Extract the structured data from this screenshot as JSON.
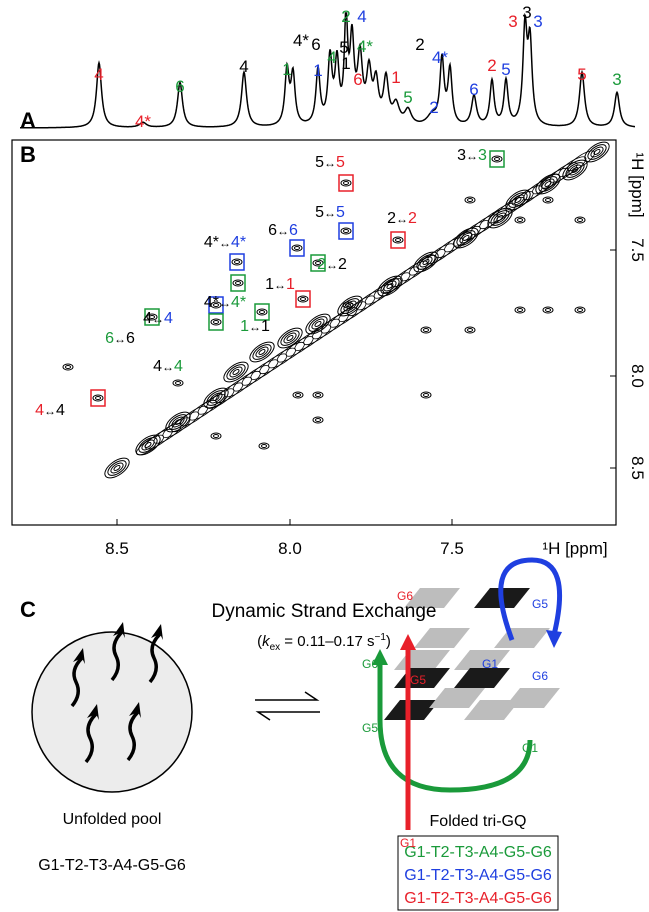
{
  "panel_a": {
    "label": "A",
    "peaks": [
      {
        "text": "4",
        "color": "red"
      },
      {
        "text": "4*",
        "color": "red"
      },
      {
        "text": "6",
        "color": "green"
      },
      {
        "text": "4",
        "color": "black"
      },
      {
        "text": "1",
        "color": "green"
      },
      {
        "text": "4*",
        "color": "black"
      },
      {
        "text": "6",
        "color": "black"
      },
      {
        "text": "1",
        "color": "blue"
      },
      {
        "text": "4",
        "color": "green"
      },
      {
        "text": "1",
        "color": "black"
      },
      {
        "text": "2",
        "color": "green"
      },
      {
        "text": "4",
        "color": "blue"
      },
      {
        "text": "5",
        "color": "black"
      },
      {
        "text": "4*",
        "color": "green"
      },
      {
        "text": "6",
        "color": "red"
      },
      {
        "text": "1",
        "color": "red"
      },
      {
        "text": "5",
        "color": "green"
      },
      {
        "text": "2",
        "color": "black"
      },
      {
        "text": "4*",
        "color": "blue"
      },
      {
        "text": "2",
        "color": "blue"
      },
      {
        "text": "6",
        "color": "blue"
      },
      {
        "text": "2",
        "color": "red"
      },
      {
        "text": "5",
        "color": "blue"
      },
      {
        "text": "3",
        "color": "red"
      },
      {
        "text": "3",
        "color": "black"
      },
      {
        "text": "3",
        "color": "blue"
      },
      {
        "text": "5",
        "color": "red"
      },
      {
        "text": "3",
        "color": "green"
      }
    ]
  },
  "panel_b": {
    "label": "B",
    "x_axis_label": "¹H [ppm]",
    "y_axis_label": "¹H [ppm]",
    "x_tick_labels": [
      "8.5",
      "8.0",
      "7.5"
    ],
    "y_tick_labels": [
      "7.5",
      "8.0",
      "8.5"
    ],
    "arrow": "↔",
    "cross_peaks": [
      {
        "from": "5",
        "from_color": "black",
        "to": "5",
        "to_color": "red"
      },
      {
        "from": "3",
        "from_color": "black",
        "to": "3",
        "to_color": "green"
      },
      {
        "from": "5",
        "from_color": "black",
        "to": "5",
        "to_color": "blue"
      },
      {
        "from": "2",
        "from_color": "black",
        "to": "2",
        "to_color": "red"
      },
      {
        "from": "6",
        "from_color": "black",
        "to": "6",
        "to_color": "blue"
      },
      {
        "from": "4*",
        "from_color": "black",
        "to": "4*",
        "to_color": "blue"
      },
      {
        "from": "2",
        "from_color": "green",
        "to": "2",
        "to_color": "black"
      },
      {
        "from": "1",
        "from_color": "black",
        "to": "1",
        "to_color": "red"
      },
      {
        "from": "4*",
        "from_color": "black",
        "to": "4*",
        "to_color": "green"
      },
      {
        "from": "1",
        "from_color": "green",
        "to": "1",
        "to_color": "black"
      },
      {
        "from": "4",
        "from_color": "black",
        "to": "4",
        "to_color": "blue"
      },
      {
        "from": "6",
        "from_color": "green",
        "to": "6",
        "to_color": "black"
      },
      {
        "from": "4",
        "from_color": "black",
        "to": "4",
        "to_color": "green"
      },
      {
        "from": "4",
        "from_color": "red",
        "to": "4",
        "to_color": "black"
      }
    ]
  },
  "panel_c": {
    "label": "C",
    "title": "Dynamic Strand Exchange",
    "rate": {
      "open": "(",
      "symbol": "k",
      "subscript": "ex",
      "value": " = 0.11–0.17 s",
      "superscript": "−1",
      "close": ")"
    },
    "unfolded_label": "Unfolded pool",
    "unfolded_sequence": "G1-T2-T3-A4-G5-G6",
    "folded_label": "Folded tri-GQ",
    "folded_sequences": [
      {
        "text": "G1-T2-T3-A4-G5-G6",
        "color": "green"
      },
      {
        "text": "G1-T2-T3-A4-G5-G6",
        "color": "blue"
      },
      {
        "text": "G1-T2-T3-A4-G5-G6",
        "color": "red"
      }
    ],
    "strand_labels": [
      {
        "text": "G6",
        "color": "red"
      },
      {
        "text": "G5",
        "color": "blue"
      },
      {
        "text": "G6",
        "color": "green"
      },
      {
        "text": "G5",
        "color": "red"
      },
      {
        "text": "G1",
        "color": "blue"
      },
      {
        "text": "G6",
        "color": "blue"
      },
      {
        "text": "G5",
        "color": "green"
      },
      {
        "text": "G1",
        "color": "green"
      },
      {
        "text": "G1",
        "color": "red"
      }
    ]
  }
}
